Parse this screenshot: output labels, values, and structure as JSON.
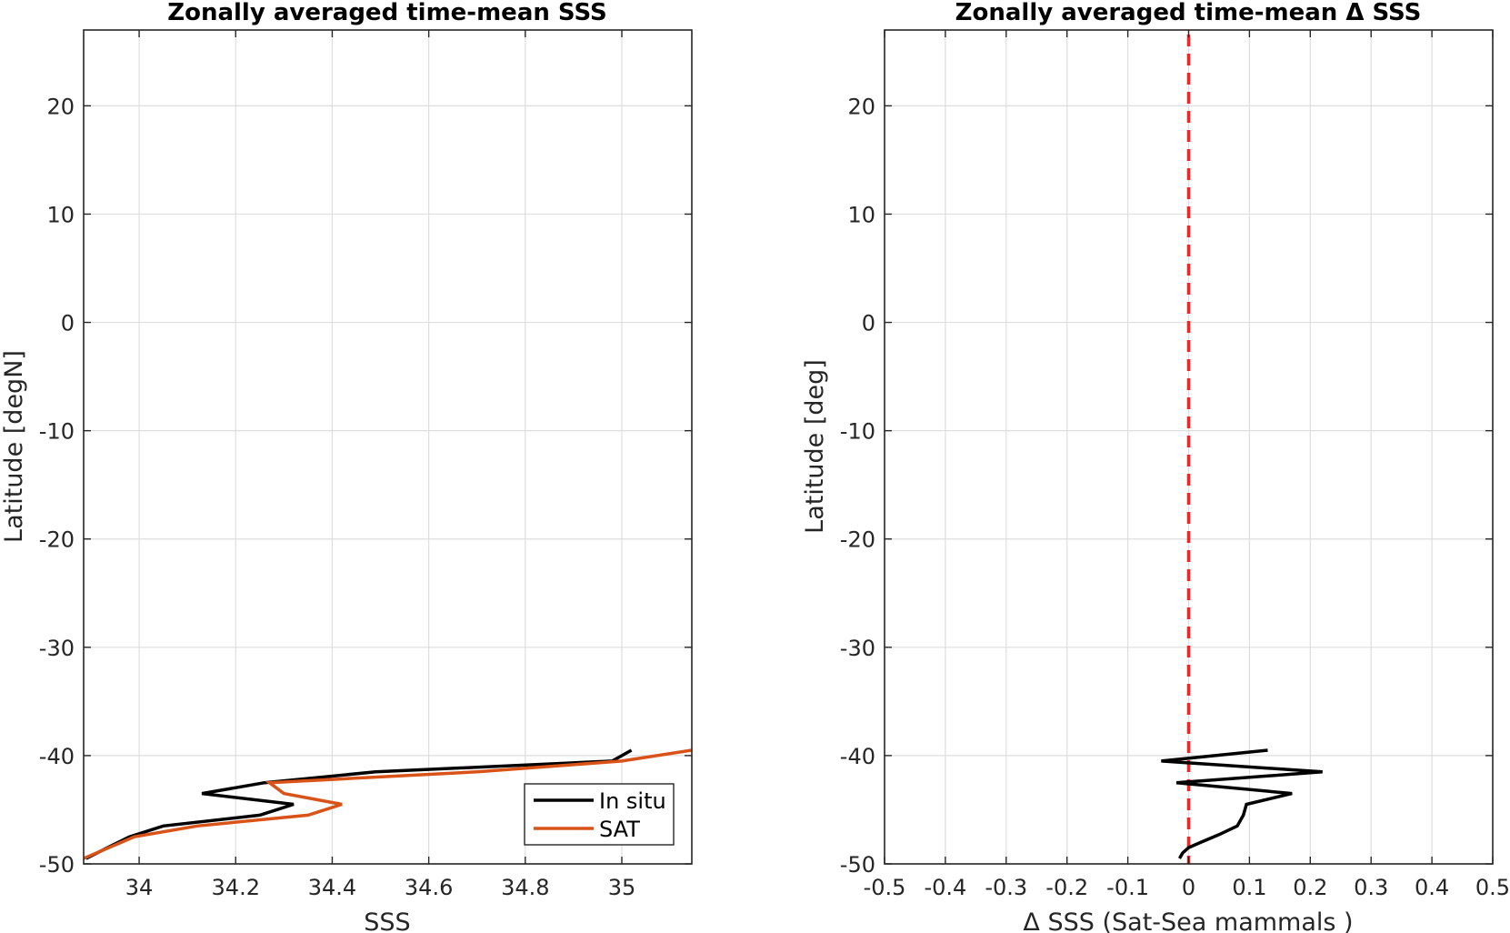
{
  "chart_data": [
    {
      "type": "line",
      "title": "Zonally averaged time-mean SSS",
      "xlabel": "SSS",
      "ylabel": "Latitude [degN]",
      "xlim": [
        33.885,
        35.145
      ],
      "ylim": [
        -50,
        27
      ],
      "xticks": [
        34,
        34.2,
        34.4,
        34.6,
        34.8,
        35
      ],
      "xtick_labels": [
        "34",
        "34.2",
        "34.4",
        "34.6",
        "34.8",
        "35"
      ],
      "yticks": [
        -50,
        -40,
        -30,
        -20,
        -10,
        0,
        10,
        20
      ],
      "ytick_labels": [
        "-50",
        "-40",
        "-30",
        "-20",
        "-10",
        "0",
        "10",
        "20"
      ],
      "grid": true,
      "legend": {
        "placement": "bottom-right"
      },
      "series": [
        {
          "name": "In situ",
          "color": "#000000",
          "x": [
            35.02,
            34.98,
            34.49,
            34.26,
            34.13,
            34.32,
            34.25,
            34.05,
            33.98,
            33.89
          ],
          "y": [
            -39.5,
            -40.5,
            -41.5,
            -42.5,
            -43.5,
            -44.5,
            -45.5,
            -46.5,
            -47.5,
            -49.5
          ]
        },
        {
          "name": "SAT",
          "color": "#D95319",
          "x": [
            35.145,
            35.0,
            34.7,
            34.27,
            34.3,
            34.42,
            34.35,
            34.12,
            33.99,
            33.885
          ],
          "y": [
            -39.5,
            -40.5,
            -41.5,
            -42.5,
            -43.5,
            -44.5,
            -45.5,
            -46.5,
            -47.5,
            -49.5
          ]
        }
      ]
    },
    {
      "type": "line",
      "title": "Zonally averaged time-mean Δ SSS",
      "xlabel": "Δ SSS (Sat-Sea mammals )",
      "ylabel": "Latitude [deg]",
      "xlim": [
        -0.5,
        0.5
      ],
      "ylim": [
        -50,
        27
      ],
      "xticks": [
        -0.5,
        -0.4,
        -0.3,
        -0.2,
        -0.1,
        0,
        0.1,
        0.2,
        0.3,
        0.4,
        0.5
      ],
      "xtick_labels": [
        "-0.5",
        "-0.4",
        "-0.3",
        "-0.2",
        "-0.1",
        "0",
        "0.1",
        "0.2",
        "0.3",
        "0.4",
        "0.5"
      ],
      "yticks": [
        -50,
        -40,
        -30,
        -20,
        -10,
        0,
        10,
        20
      ],
      "ytick_labels": [
        "-50",
        "-40",
        "-30",
        "-20",
        "-10",
        "0",
        "10",
        "20"
      ],
      "grid": true,
      "reference_line": {
        "x": 0,
        "color": "#FF1F1F",
        "style": "dashed"
      },
      "series": [
        {
          "color": "#000000",
          "x": [
            0.13,
            -0.045,
            0.22,
            -0.02,
            0.17,
            0.095,
            0.09,
            0.08,
            0.05,
            0.02,
            0.0,
            -0.01,
            -0.015
          ],
          "y": [
            -39.5,
            -40.5,
            -41.5,
            -42.5,
            -43.5,
            -44.5,
            -45.5,
            -46.5,
            -47.3,
            -48.0,
            -48.5,
            -49.0,
            -49.5
          ]
        }
      ]
    }
  ]
}
